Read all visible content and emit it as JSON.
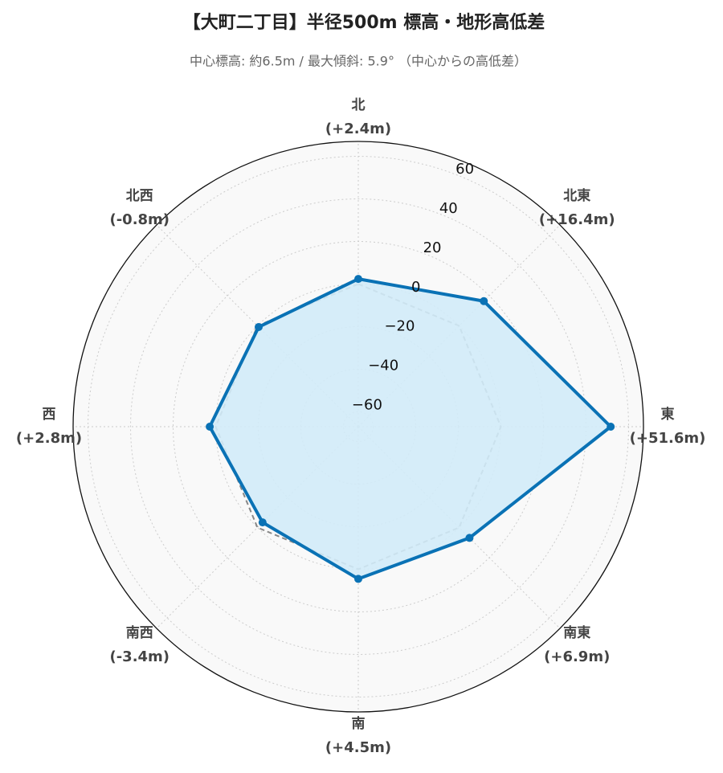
{
  "chart_data": {
    "type": "radar",
    "title": "【大町二丁目】半径500m 標高・地形高低差",
    "subtitle": "中心標高: 約6.5m / 最大傾斜: 5.9° （中心からの高低差）",
    "categories": [
      "北",
      "北東",
      "東",
      "南東",
      "南",
      "南西",
      "西",
      "北西"
    ],
    "series": [
      {
        "color": "#0a72b5",
        "fill": "#d2ebf8",
        "values": [
          2.4,
          16.4,
          51.6,
          6.9,
          4.5,
          -3.4,
          2.8,
          -0.8
        ],
        "value_labels": [
          "(+2.4m)",
          "(+16.4m)",
          "(+51.6m)",
          "(+6.9m)",
          "(+4.5m)",
          "(-3.4m)",
          "(+2.8m)",
          "(-0.8m)"
        ]
      }
    ],
    "reference_line": {
      "values": [
        0,
        0,
        0,
        0,
        0,
        0,
        0,
        0
      ],
      "color": "#888888",
      "style": "dashed"
    },
    "ylim": [
      -67,
      67
    ],
    "yticks": [
      {
        "value": -60,
        "label": "−60"
      },
      {
        "value": -40,
        "label": "−40"
      },
      {
        "value": -20,
        "label": "−20"
      },
      0,
      20,
      40,
      60
    ],
    "grid": true
  }
}
